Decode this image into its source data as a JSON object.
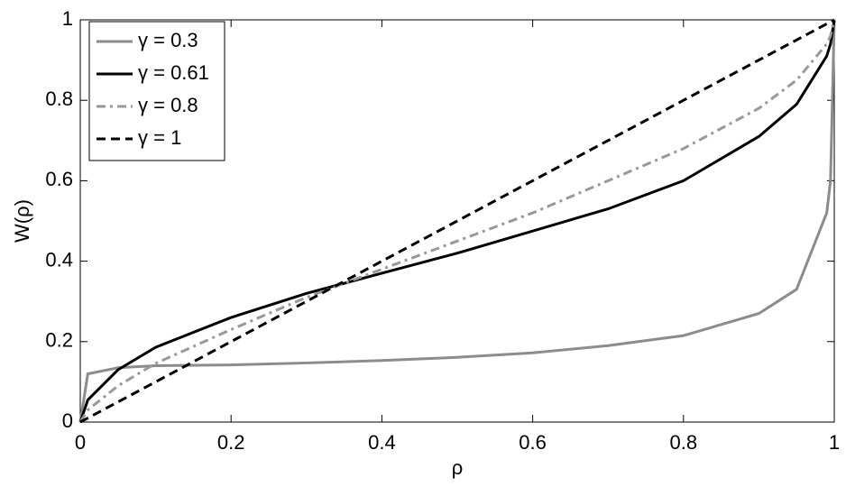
{
  "chart_data": {
    "type": "line",
    "xlabel": "ρ",
    "ylabel": "W(ρ)",
    "x": [
      0,
      0.01,
      0.05,
      0.1,
      0.2,
      0.3,
      0.4,
      0.5,
      0.6,
      0.7,
      0.8,
      0.9,
      0.95,
      0.99,
      0.995,
      1
    ],
    "series": [
      {
        "name": "γ = 0.3",
        "color": "#8c8c8c",
        "dash": "solid",
        "values": [
          0,
          0.12,
          0.135,
          0.14,
          0.142,
          0.147,
          0.153,
          0.161,
          0.172,
          0.19,
          0.215,
          0.27,
          0.33,
          0.52,
          0.6,
          1
        ]
      },
      {
        "name": "γ = 0.61",
        "color": "#000000",
        "dash": "solid",
        "values": [
          0,
          0.055,
          0.13,
          0.186,
          0.26,
          0.32,
          0.37,
          0.42,
          0.475,
          0.53,
          0.6,
          0.71,
          0.79,
          0.91,
          0.94,
          1
        ]
      },
      {
        "name": "γ = 0.8",
        "color": "#999999",
        "dash": "dashdot",
        "values": [
          0,
          0.03,
          0.09,
          0.146,
          0.23,
          0.31,
          0.38,
          0.45,
          0.52,
          0.6,
          0.68,
          0.78,
          0.85,
          0.94,
          0.96,
          1
        ]
      },
      {
        "name": "γ = 1",
        "color": "#000000",
        "dash": "dashed",
        "values": [
          0,
          0.01,
          0.05,
          0.1,
          0.2,
          0.3,
          0.4,
          0.5,
          0.6,
          0.7,
          0.8,
          0.9,
          0.95,
          0.99,
          0.995,
          1
        ]
      }
    ],
    "xlim": [
      0,
      1
    ],
    "xticks": [
      0,
      0.2,
      0.4,
      0.6,
      0.8,
      1
    ],
    "ylim": [
      0,
      1
    ],
    "yticks": [
      0,
      0.2,
      0.4,
      0.6,
      0.8,
      1
    ],
    "grid": false,
    "legend": "upper-left"
  }
}
